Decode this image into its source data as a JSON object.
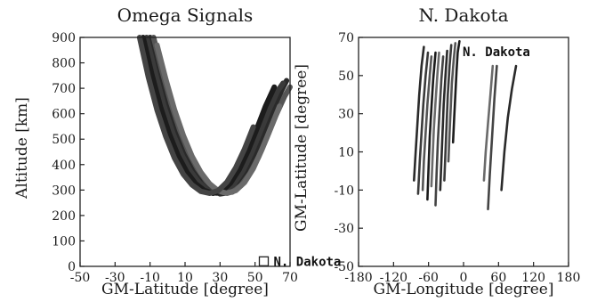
{
  "chart_data": [
    {
      "type": "line",
      "title": "Omega Signals",
      "xlabel": "GM-Latitude [degree]",
      "ylabel": "Altitude [km]",
      "xlim": [
        -50,
        70
      ],
      "ylim": [
        0,
        900
      ],
      "xticks": [
        -50,
        -30,
        -10,
        10,
        30,
        50,
        70
      ],
      "yticks": [
        0,
        100,
        200,
        300,
        400,
        500,
        600,
        700,
        800,
        900
      ],
      "marker": {
        "x": 55,
        "y": 20,
        "label": "N. Dakota"
      },
      "series": [
        {
          "x": [
            -10,
            -5,
            0,
            5,
            10,
            15,
            20,
            25,
            30,
            35,
            40,
            45,
            50,
            55,
            60,
            65,
            68
          ],
          "y": [
            900,
            770,
            640,
            540,
            450,
            385,
            335,
            300,
            285,
            290,
            320,
            370,
            440,
            525,
            610,
            690,
            730
          ]
        },
        {
          "x": [
            -12,
            -7,
            -2,
            3,
            8,
            13,
            18,
            23,
            28,
            33,
            38,
            43,
            48,
            53,
            58,
            63,
            66
          ],
          "y": [
            900,
            760,
            630,
            525,
            440,
            375,
            330,
            300,
            288,
            295,
            325,
            375,
            445,
            530,
            615,
            690,
            720
          ]
        },
        {
          "x": [
            -8,
            -3,
            2,
            7,
            12,
            17,
            22,
            27,
            32,
            37,
            42,
            47,
            52,
            57,
            62,
            67,
            70
          ],
          "y": [
            900,
            765,
            640,
            535,
            450,
            385,
            337,
            305,
            290,
            292,
            318,
            365,
            430,
            510,
            595,
            670,
            705
          ]
        },
        {
          "x": [
            -14,
            -9,
            -4,
            1,
            6,
            11,
            16,
            21,
            26,
            31,
            36,
            41,
            46,
            51,
            56,
            61
          ],
          "y": [
            900,
            755,
            625,
            520,
            435,
            370,
            325,
            298,
            287,
            295,
            328,
            382,
            455,
            540,
            630,
            705
          ]
        },
        {
          "x": [
            -6,
            -1,
            4,
            9,
            14,
            19,
            24,
            29,
            34,
            39,
            44,
            49,
            54,
            59,
            64
          ],
          "y": [
            870,
            735,
            615,
            515,
            432,
            370,
            325,
            297,
            287,
            298,
            330,
            385,
            460,
            545,
            630
          ]
        },
        {
          "x": [
            -16,
            -11,
            -6,
            -1,
            4,
            9,
            14,
            19,
            24,
            29,
            34,
            39,
            44,
            49
          ],
          "y": [
            900,
            745,
            615,
            510,
            425,
            362,
            320,
            295,
            287,
            298,
            332,
            388,
            462,
            548
          ]
        }
      ]
    },
    {
      "type": "line",
      "title": "N. Dakota",
      "xlabel": "GM-Longitude [degree]",
      "ylabel": "GM-Latitude [degree]",
      "xlim": [
        -180,
        180
      ],
      "ylim": [
        -50,
        70
      ],
      "xticks": [
        -180,
        -120,
        -60,
        0,
        60,
        120,
        180
      ],
      "xtick_labels": [
        "-180",
        "-120",
        "-60",
        "0",
        "60",
        "120",
        "180"
      ],
      "yticks": [
        -50,
        -30,
        -10,
        10,
        30,
        50,
        70
      ],
      "annotation": "N. Dakota",
      "series": [
        {
          "x": [
            -85,
            -82,
            -79,
            -76,
            -72,
            -68
          ],
          "y": [
            -5,
            10,
            25,
            40,
            55,
            65
          ]
        },
        {
          "x": [
            -78,
            -75,
            -72,
            -69,
            -65,
            -61
          ],
          "y": [
            -12,
            5,
            20,
            35,
            50,
            62
          ]
        },
        {
          "x": [
            -70,
            -68,
            -65,
            -62,
            -58,
            -55
          ],
          "y": [
            -10,
            5,
            20,
            35,
            50,
            60
          ]
        },
        {
          "x": [
            -62,
            -60,
            -58,
            -55,
            -52,
            -48
          ],
          "y": [
            -15,
            2,
            18,
            33,
            48,
            62
          ]
        },
        {
          "x": [
            -55,
            -53,
            -51,
            -48,
            -45,
            -42
          ],
          "y": [
            -8,
            8,
            22,
            36,
            50,
            62
          ]
        },
        {
          "x": [
            -48,
            -46,
            -44,
            -41,
            -38,
            -35
          ],
          "y": [
            -18,
            0,
            16,
            32,
            48,
            60
          ]
        },
        {
          "x": [
            -40,
            -38,
            -36,
            -34,
            -31,
            -28
          ],
          "y": [
            -10,
            5,
            20,
            35,
            50,
            63
          ]
        },
        {
          "x": [
            -33,
            -31,
            -29,
            -27,
            -24,
            -21
          ],
          "y": [
            -5,
            10,
            25,
            40,
            55,
            66
          ]
        },
        {
          "x": [
            -26,
            -24,
            -22,
            -20,
            -17,
            -14
          ],
          "y": [
            5,
            20,
            33,
            46,
            58,
            67
          ]
        },
        {
          "x": [
            -18,
            -16,
            -14,
            -12,
            -10,
            -7
          ],
          "y": [
            15,
            28,
            40,
            52,
            62,
            68
          ]
        },
        {
          "x": [
            35,
            38,
            42,
            46,
            50
          ],
          "y": [
            -5,
            10,
            25,
            40,
            55
          ]
        },
        {
          "x": [
            42,
            45,
            49,
            53,
            57
          ],
          "y": [
            -20,
            -2,
            18,
            38,
            55
          ]
        },
        {
          "x": [
            65,
            70,
            76,
            83,
            90
          ],
          "y": [
            -10,
            10,
            28,
            43,
            55
          ]
        }
      ]
    }
  ]
}
